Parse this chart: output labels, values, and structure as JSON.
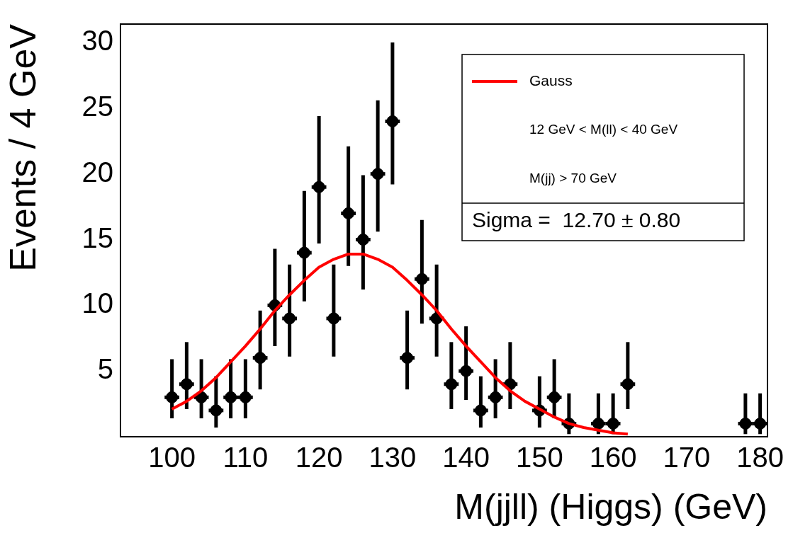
{
  "chart_data": {
    "type": "scatter",
    "xlabel": "M(jjll) (Higgs) (GeV)",
    "ylabel": "Events / 4 GeV",
    "x": [
      100,
      102,
      104,
      106,
      108,
      110,
      112,
      114,
      116,
      118,
      120,
      122,
      124,
      126,
      128,
      130,
      132,
      134,
      136,
      138,
      140,
      142,
      144,
      146,
      150,
      152,
      154,
      158,
      160,
      162,
      178,
      180
    ],
    "series": [
      {
        "type": "scatter",
        "color": "#000000",
        "marker": "circle",
        "values": [
          3,
          4,
          3,
          2,
          3,
          3,
          6,
          10,
          9,
          14,
          19,
          9,
          17,
          15,
          20,
          24,
          6,
          12,
          9,
          4,
          5,
          2,
          3,
          4,
          2,
          3,
          1,
          1,
          1,
          4,
          1,
          1
        ],
        "errors": [
          [
            1.4,
            5.9
          ],
          [
            2.1,
            7.2
          ],
          [
            1.4,
            5.9
          ],
          [
            0.7,
            4.6
          ],
          [
            1.4,
            5.9
          ],
          [
            1.4,
            5.9
          ],
          [
            3.6,
            9.6
          ],
          [
            6.9,
            14.3
          ],
          [
            6.1,
            13.1
          ],
          [
            10.3,
            18.7
          ],
          [
            14.7,
            24.4
          ],
          [
            6.1,
            13.1
          ],
          [
            13.0,
            22.1
          ],
          [
            11.2,
            19.9
          ],
          [
            15.6,
            25.6
          ],
          [
            19.2,
            30.0
          ],
          [
            3.6,
            9.6
          ],
          [
            8.6,
            16.5
          ],
          [
            6.1,
            13.1
          ],
          [
            2.1,
            7.2
          ],
          [
            2.8,
            8.4
          ],
          [
            0.7,
            4.6
          ],
          [
            1.4,
            5.9
          ],
          [
            2.1,
            7.2
          ],
          [
            0.7,
            4.6
          ],
          [
            1.4,
            5.9
          ],
          [
            0.2,
            3.3
          ],
          [
            0.2,
            3.3
          ],
          [
            0.2,
            3.3
          ],
          [
            2.1,
            7.2
          ],
          [
            0.2,
            3.3
          ],
          [
            0.2,
            3.3
          ]
        ],
        "xerrors": [
          1,
          1,
          1,
          1,
          1,
          1,
          1,
          1,
          1,
          1,
          1,
          1,
          1,
          1,
          1,
          1,
          1,
          1,
          1,
          1,
          1,
          1,
          1,
          1,
          1,
          1,
          1,
          1,
          1,
          1,
          1,
          1
        ]
      },
      {
        "type": "line",
        "name": "Gauss",
        "color": "#ff0000",
        "x": [
          100,
          102,
          104,
          106,
          108,
          110,
          112,
          114,
          116,
          118,
          120,
          122,
          124,
          126,
          128,
          130,
          132,
          134,
          136,
          138,
          140,
          142,
          144,
          146,
          148,
          150,
          152,
          154,
          156,
          158,
          160,
          162
        ],
        "values": [
          2.1,
          2.7,
          3.5,
          4.5,
          5.7,
          6.9,
          8.2,
          9.6,
          10.8,
          11.9,
          12.9,
          13.5,
          13.9,
          13.9,
          13.5,
          12.9,
          11.9,
          10.8,
          9.6,
          8.2,
          6.9,
          5.7,
          4.5,
          3.5,
          2.7,
          2.1,
          1.5,
          1.0,
          0.7,
          0.5,
          0.3,
          0.2
        ]
      }
    ],
    "xlim": [
      93,
      181
    ],
    "ylim": [
      0,
      31.4
    ],
    "xticks": [
      100,
      110,
      120,
      130,
      140,
      150,
      160,
      170,
      180
    ],
    "yticks": [
      5,
      10,
      15,
      20,
      25,
      30
    ],
    "grid": false,
    "legend": "top right",
    "line_style": "solid",
    "annotations": [
      "12 GeV < M(ll) < 40 GeV",
      "M(jj) > 70 GeV",
      "Sigma =  12.70 ± 0.80"
    ]
  }
}
